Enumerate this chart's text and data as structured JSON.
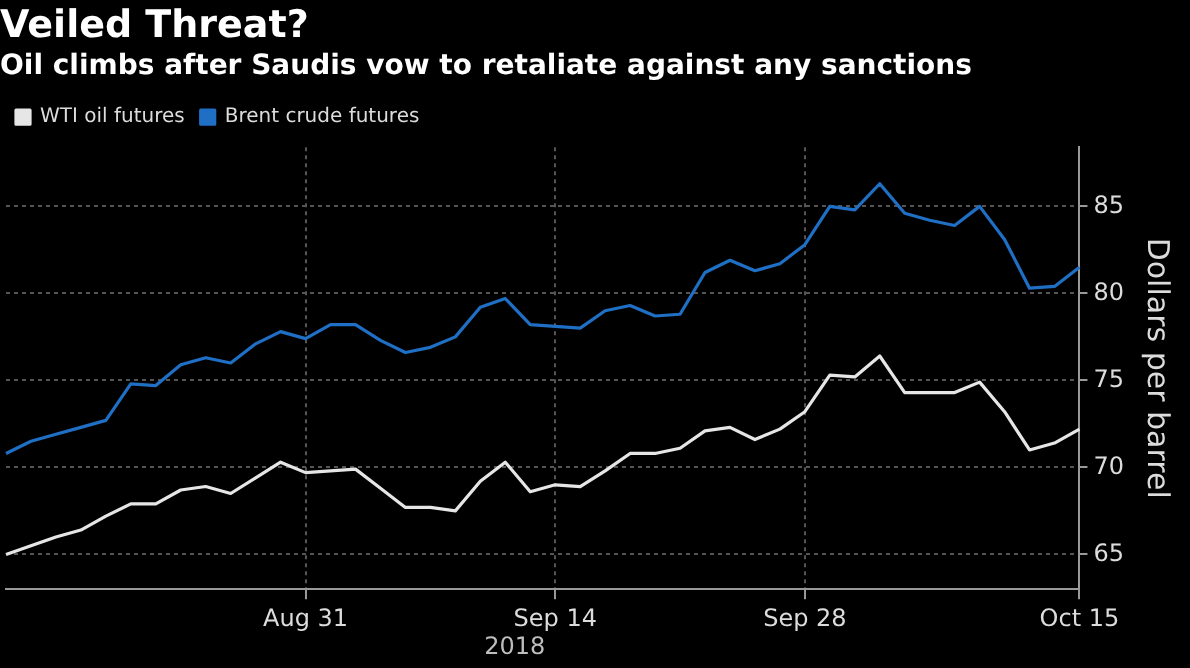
{
  "chart_data": {
    "type": "line",
    "title": "Veiled Threat?",
    "subtitle": "Oil climbs after Saudis vow to retaliate against any sanctions",
    "ylabel": "Dollars per barrel",
    "categories": [
      null,
      null,
      null,
      null,
      null,
      null,
      null,
      null,
      null,
      null,
      null,
      null,
      "Aug 31",
      null,
      null,
      null,
      null,
      null,
      null,
      null,
      null,
      null,
      "Sep 14",
      null,
      null,
      null,
      null,
      null,
      null,
      null,
      null,
      null,
      "Sep 28",
      null,
      null,
      null,
      null,
      null,
      null,
      null,
      null,
      null,
      null,
      "Oct 15"
    ],
    "series": [
      {
        "name": "WTI oil futures",
        "color": "#e6e6e6",
        "values": [
          65.0,
          65.5,
          66.0,
          66.4,
          67.2,
          67.9,
          67.9,
          68.7,
          68.9,
          68.5,
          69.4,
          70.3,
          69.7,
          69.8,
          69.9,
          68.8,
          67.7,
          67.7,
          67.5,
          69.2,
          70.3,
          68.6,
          69.0,
          68.9,
          69.8,
          70.8,
          70.8,
          71.1,
          72.1,
          72.3,
          71.6,
          72.2,
          73.2,
          75.3,
          75.2,
          76.4,
          74.3,
          74.3,
          74.3,
          74.9,
          73.2,
          71.0,
          71.4,
          72.2
        ]
      },
      {
        "name": "Brent crude futures",
        "color": "#1f6fc5",
        "values": [
          70.8,
          71.5,
          71.9,
          72.3,
          72.7,
          74.8,
          74.7,
          75.9,
          76.3,
          76.0,
          77.1,
          77.8,
          77.4,
          78.2,
          78.2,
          77.3,
          76.6,
          76.9,
          77.5,
          79.2,
          79.7,
          78.2,
          78.1,
          78.0,
          79.0,
          79.3,
          78.7,
          78.8,
          81.2,
          81.9,
          81.3,
          81.7,
          82.8,
          85.0,
          84.8,
          86.3,
          84.6,
          84.2,
          83.9,
          85.0,
          83.1,
          80.3,
          80.4,
          81.5
        ]
      }
    ],
    "ylim": [
      63,
      88.4
    ],
    "yticks": [
      65,
      70,
      75,
      80,
      85
    ],
    "annotations": [
      "2018"
    ],
    "grid": true,
    "legend": "top left",
    "marker": "none",
    "line_style": "solid"
  }
}
